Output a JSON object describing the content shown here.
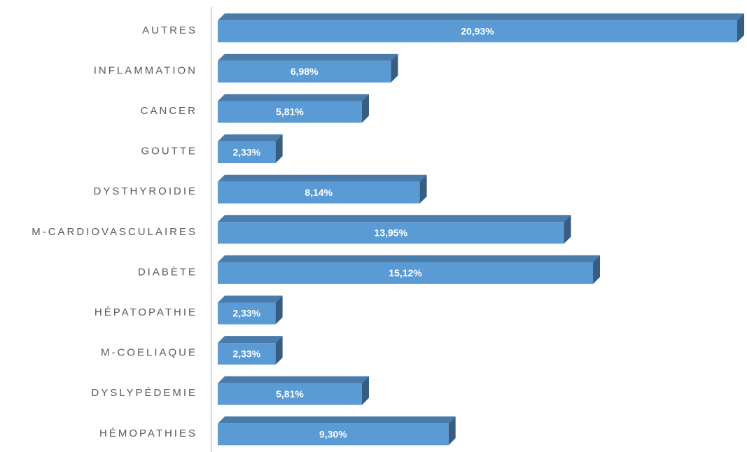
{
  "chart_data": {
    "type": "bar",
    "orientation": "horizontal",
    "categories": [
      "AUTRES",
      "INFLAMMATION",
      "CANCER",
      "GOUTTE",
      "DYSTHYROIDIE",
      "M-CARDIOVASCULAIRES",
      "DIABÈTE",
      "HÉPATOPATHIE",
      "M-COELIAQUE",
      "DYSLYPÉDEMIE",
      "HÉMOPATHIES"
    ],
    "values": [
      20.93,
      6.98,
      5.81,
      2.33,
      8.14,
      13.95,
      15.12,
      2.33,
      2.33,
      5.81,
      9.3
    ],
    "value_labels": [
      "20,93%",
      "6,98%",
      "5,81%",
      "2,33%",
      "8,14%",
      "13,95%",
      "15,12%",
      "2,33%",
      "2,33%",
      "5,81%",
      "9,30%"
    ],
    "color": "#5b9bd5"
  }
}
